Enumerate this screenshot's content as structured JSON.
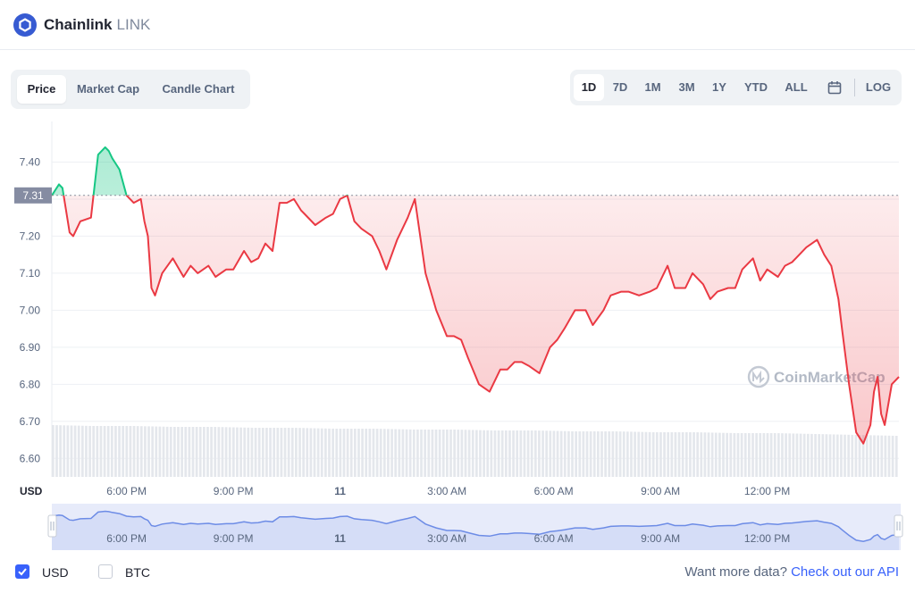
{
  "coin": {
    "name": "Chainlink",
    "symbol": "LINK",
    "logo_icon": "chainlink-hexagon-icon",
    "logo_color": "#375bd2"
  },
  "chart_tabs": [
    "Price",
    "Market Cap",
    "Candle Chart"
  ],
  "active_chart_tab": "Price",
  "range_tabs": [
    "1D",
    "7D",
    "1M",
    "3M",
    "1Y",
    "YTD",
    "ALL"
  ],
  "active_range_tab": "1D",
  "calendar_icon": "calendar-icon",
  "log_label": "LOG",
  "watermark": "CoinMarketCap",
  "currency_label": "USD",
  "currencies": [
    {
      "label": "USD",
      "checked": true
    },
    {
      "label": "BTC",
      "checked": false
    }
  ],
  "footer": {
    "prefix": "Want more data?",
    "link": "Check out our API"
  },
  "colors": {
    "up": "#16c784",
    "down": "#ea3943",
    "accent": "#3861fb",
    "navigator": "#6d8ce6"
  },
  "chart_data": {
    "type": "line",
    "ylim": [
      6.55,
      7.5
    ],
    "yticks": [
      6.6,
      6.7,
      6.8,
      6.9,
      7.0,
      7.1,
      7.2,
      7.3,
      7.4
    ],
    "ytick_labels": [
      "6.60",
      "6.70",
      "6.80",
      "6.90",
      "7.00",
      "7.10",
      "7.20",
      "",
      "7.40"
    ],
    "reference_price": 7.31,
    "reference_label": "7.31",
    "xlim": [
      15.9,
      39.7
    ],
    "xticks": [
      18,
      21,
      24,
      27,
      30,
      33,
      36
    ],
    "xtick_labels": [
      "6:00 PM",
      "9:00 PM",
      "11",
      "3:00 AM",
      "6:00 AM",
      "9:00 AM",
      "12:00 PM"
    ],
    "grid": true,
    "price_series": {
      "x": [
        15.9,
        16.1,
        16.2,
        16.4,
        16.5,
        16.7,
        17.0,
        17.2,
        17.4,
        17.5,
        17.6,
        17.8,
        18.0,
        18.2,
        18.4,
        18.5,
        18.6,
        18.7,
        18.8,
        19.0,
        19.3,
        19.6,
        19.8,
        20.0,
        20.3,
        20.5,
        20.8,
        21.0,
        21.3,
        21.5,
        21.7,
        21.9,
        22.1,
        22.3,
        22.5,
        22.7,
        22.9,
        23.0,
        23.3,
        23.6,
        23.8,
        24.0,
        24.2,
        24.4,
        24.6,
        24.9,
        25.1,
        25.3,
        25.6,
        25.9,
        26.1,
        26.4,
        26.7,
        27.0,
        27.2,
        27.4,
        27.6,
        27.9,
        28.2,
        28.5,
        28.7,
        28.9,
        29.1,
        29.3,
        29.6,
        29.9,
        30.1,
        30.3,
        30.6,
        30.9,
        31.1,
        31.4,
        31.6,
        31.9,
        32.1,
        32.4,
        32.7,
        32.9,
        33.2,
        33.4,
        33.7,
        33.9,
        34.2,
        34.4,
        34.6,
        34.9,
        35.1,
        35.3,
        35.6,
        35.8,
        36.0,
        36.3,
        36.5,
        36.7,
        36.9,
        37.1,
        37.4,
        37.6,
        37.8,
        38.0,
        38.1,
        38.3,
        38.5,
        38.7,
        38.9,
        39.0,
        39.1,
        39.2,
        39.3,
        39.5,
        39.7
      ],
      "y": [
        7.31,
        7.34,
        7.33,
        7.21,
        7.2,
        7.24,
        7.25,
        7.42,
        7.44,
        7.43,
        7.41,
        7.38,
        7.31,
        7.29,
        7.3,
        7.24,
        7.2,
        7.06,
        7.04,
        7.1,
        7.14,
        7.09,
        7.12,
        7.1,
        7.12,
        7.09,
        7.11,
        7.11,
        7.16,
        7.13,
        7.14,
        7.18,
        7.16,
        7.29,
        7.29,
        7.3,
        7.27,
        7.26,
        7.23,
        7.25,
        7.26,
        7.3,
        7.31,
        7.24,
        7.22,
        7.2,
        7.16,
        7.11,
        7.19,
        7.25,
        7.3,
        7.1,
        7.0,
        6.93,
        6.93,
        6.92,
        6.87,
        6.8,
        6.78,
        6.84,
        6.84,
        6.86,
        6.86,
        6.85,
        6.83,
        6.9,
        6.92,
        6.95,
        7.0,
        7.0,
        6.96,
        7.0,
        7.04,
        7.05,
        7.05,
        7.04,
        7.05,
        7.06,
        7.12,
        7.06,
        7.06,
        7.1,
        7.07,
        7.03,
        7.05,
        7.06,
        7.06,
        7.11,
        7.14,
        7.08,
        7.11,
        7.09,
        7.12,
        7.13,
        7.15,
        7.17,
        7.19,
        7.15,
        7.12,
        7.03,
        6.95,
        6.8,
        6.67,
        6.64,
        6.69,
        6.78,
        6.82,
        6.72,
        6.69,
        6.8,
        6.82
      ]
    },
    "navigator": {
      "xtick_labels": [
        "6:00 PM",
        "9:00 PM",
        "11",
        "3:00 AM",
        "6:00 AM",
        "9:00 AM",
        "12:00 PM"
      ]
    },
    "volume_series": {
      "note": "relative volume bars beneath price line, roughly flat and slowly declining",
      "values": [
        0.58,
        0.57,
        0.57,
        0.56,
        0.56,
        0.55,
        0.55,
        0.54,
        0.54,
        0.53,
        0.53,
        0.52,
        0.52,
        0.51,
        0.51,
        0.5,
        0.5,
        0.49,
        0.49,
        0.48,
        0.47,
        0.46
      ]
    }
  }
}
